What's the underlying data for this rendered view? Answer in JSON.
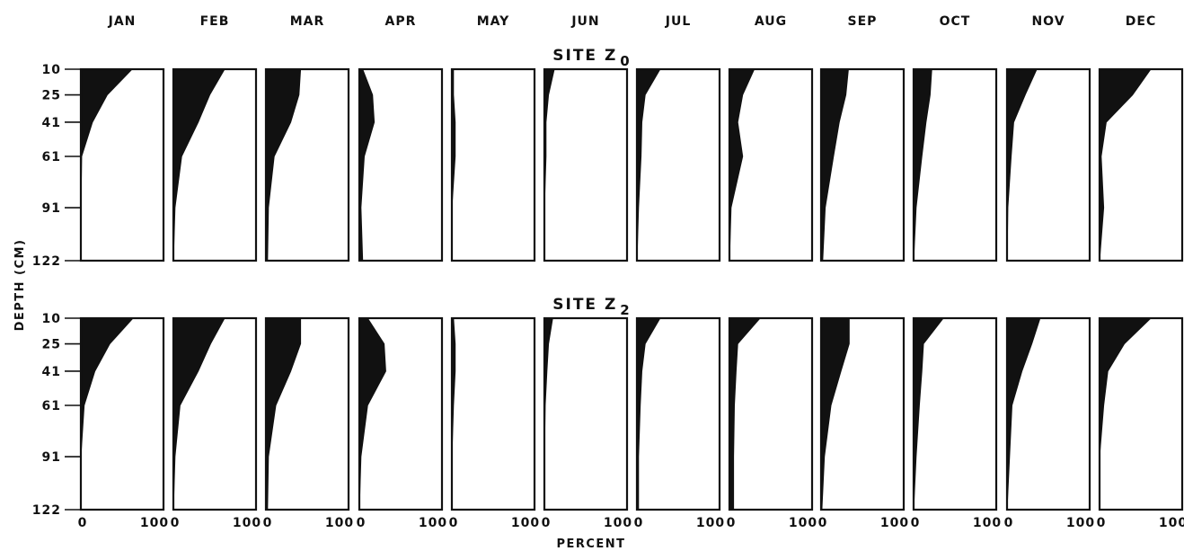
{
  "chart_data": {
    "type": "area",
    "months": [
      "JAN",
      "FEB",
      "MAR",
      "APR",
      "MAY",
      "JUN",
      "JUL",
      "AUG",
      "SEP",
      "OCT",
      "NOV",
      "DEC"
    ],
    "ylabel": "DEPTH (CM)",
    "xlabel": "PERCENT",
    "depth_ticks": [
      "10",
      "25",
      "41",
      "61",
      "91",
      "122"
    ],
    "depths": [
      10,
      25,
      41,
      61,
      91,
      122
    ],
    "x_ticks": [
      "0",
      "100"
    ],
    "xlim": [
      0,
      100
    ],
    "ylim": [
      10,
      122
    ],
    "y_inverted": true,
    "panels": [
      {
        "site_title": "SITE Z",
        "site_subscript": "0",
        "profiles": [
          {
            "month": "JAN",
            "values": [
              62,
              32,
              14,
              1,
              0,
              0
            ]
          },
          {
            "month": "FEB",
            "values": [
              62,
              44,
              30,
              10,
              2,
              0
            ]
          },
          {
            "month": "MAR",
            "values": [
              42,
              40,
              30,
              10,
              3,
              2
            ]
          },
          {
            "month": "APR",
            "values": [
              4,
              16,
              18,
              6,
              2,
              4
            ]
          },
          {
            "month": "MAY",
            "values": [
              2,
              2,
              4,
              4,
              0,
              0
            ]
          },
          {
            "month": "JUN",
            "values": [
              12,
              5,
              2,
              2,
              0,
              0
            ]
          },
          {
            "month": "JUL",
            "values": [
              28,
              10,
              6,
              5,
              2,
              0
            ]
          },
          {
            "month": "AUG",
            "values": [
              30,
              16,
              10,
              16,
              2,
              0
            ]
          },
          {
            "month": "SEP",
            "values": [
              33,
              30,
              22,
              15,
              5,
              2
            ]
          },
          {
            "month": "OCT",
            "values": [
              22,
              20,
              15,
              10,
              3,
              0
            ]
          },
          {
            "month": "NOV",
            "values": [
              36,
              22,
              8,
              5,
              1,
              0
            ]
          },
          {
            "month": "DEC",
            "values": [
              62,
              40,
              8,
              2,
              5,
              0
            ]
          }
        ]
      },
      {
        "site_title": "SITE Z",
        "site_subscript": "2",
        "profiles": [
          {
            "month": "JAN",
            "values": [
              63,
              35,
              17,
              4,
              0,
              0
            ]
          },
          {
            "month": "FEB",
            "values": [
              62,
              45,
              30,
              8,
              2,
              0
            ]
          },
          {
            "month": "MAR",
            "values": [
              42,
              42,
              30,
              12,
              3,
              2
            ]
          },
          {
            "month": "APR",
            "values": [
              10,
              30,
              32,
              10,
              2,
              0
            ]
          },
          {
            "month": "MAY",
            "values": [
              2,
              4,
              4,
              2,
              0,
              0
            ]
          },
          {
            "month": "JUN",
            "values": [
              10,
              5,
              3,
              1,
              0,
              0
            ]
          },
          {
            "month": "JUL",
            "values": [
              28,
              10,
              6,
              4,
              2,
              2
            ]
          },
          {
            "month": "AUG",
            "values": [
              37,
              10,
              8,
              6,
              5,
              5
            ]
          },
          {
            "month": "SEP",
            "values": [
              34,
              34,
              24,
              12,
              4,
              1
            ]
          },
          {
            "month": "OCT",
            "values": [
              36,
              12,
              10,
              7,
              3,
              0
            ]
          },
          {
            "month": "NOV",
            "values": [
              40,
              30,
              18,
              6,
              3,
              0
            ]
          },
          {
            "month": "DEC",
            "values": [
              62,
              30,
              10,
              5,
              0,
              0
            ]
          }
        ]
      }
    ]
  }
}
